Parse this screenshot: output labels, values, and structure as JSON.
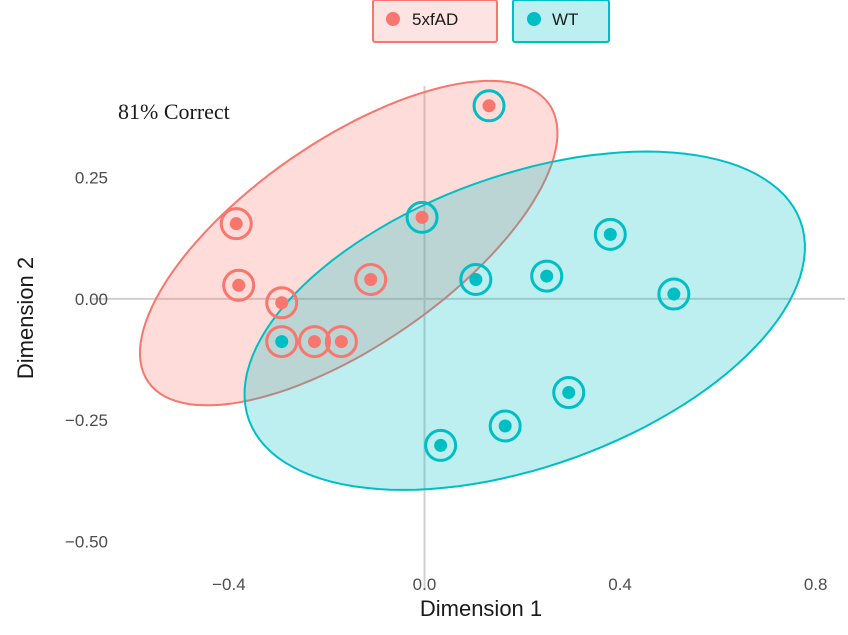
{
  "chart_data": {
    "type": "scatter",
    "title": "",
    "xlabel": "Dimension 1",
    "ylabel": "Dimension 2",
    "xlim": [
      -0.68,
      0.86
    ],
    "ylim": [
      -0.6,
      0.48
    ],
    "xticks": [
      -0.4,
      0.0,
      0.4,
      0.8
    ],
    "xtick_labels": [
      "−0.4",
      "0.0",
      "0.4",
      "0.8"
    ],
    "yticks": [
      -0.5,
      -0.25,
      0.0,
      0.25
    ],
    "ytick_labels": [
      "−0.50",
      "−0.25",
      "0.00",
      "0.25"
    ],
    "annotation": "81% Correct",
    "legend_position": "top",
    "grid": "axes lines at x=0 and y=0",
    "series": [
      {
        "name": "5xfAD",
        "color": "#F8766D",
        "points": [
          {
            "x": 0.132,
            "y": 0.398,
            "predicted": "WT"
          },
          {
            "x": -0.005,
            "y": 0.168,
            "predicted": "WT"
          },
          {
            "x": -0.385,
            "y": 0.155,
            "predicted": "5xfAD"
          },
          {
            "x": -0.38,
            "y": 0.028,
            "predicted": "5xfAD"
          },
          {
            "x": -0.11,
            "y": 0.04,
            "predicted": "5xfAD"
          },
          {
            "x": -0.292,
            "y": -0.008,
            "predicted": "5xfAD"
          },
          {
            "x": -0.225,
            "y": -0.088,
            "predicted": "5xfAD"
          },
          {
            "x": -0.17,
            "y": -0.088,
            "predicted": "5xfAD"
          }
        ],
        "ellipse": {
          "cx": -0.155,
          "cy": 0.115,
          "rx": 0.5,
          "ry": 0.21,
          "angle_deg": 35
        }
      },
      {
        "name": "WT",
        "color": "#00BFC4",
        "points": [
          {
            "x": -0.292,
            "y": -0.088,
            "predicted": "5xfAD"
          },
          {
            "x": 0.105,
            "y": 0.04,
            "predicted": "WT"
          },
          {
            "x": 0.25,
            "y": 0.047,
            "predicted": "WT"
          },
          {
            "x": 0.38,
            "y": 0.133,
            "predicted": "WT"
          },
          {
            "x": 0.51,
            "y": 0.01,
            "predicted": "WT"
          },
          {
            "x": 0.295,
            "y": -0.193,
            "predicted": "WT"
          },
          {
            "x": 0.165,
            "y": -0.262,
            "predicted": "WT"
          },
          {
            "x": 0.033,
            "y": -0.302,
            "predicted": "WT"
          }
        ],
        "ellipse": {
          "cx": 0.205,
          "cy": -0.045,
          "rx": 0.6,
          "ry": 0.3,
          "angle_deg": 20
        }
      }
    ]
  }
}
